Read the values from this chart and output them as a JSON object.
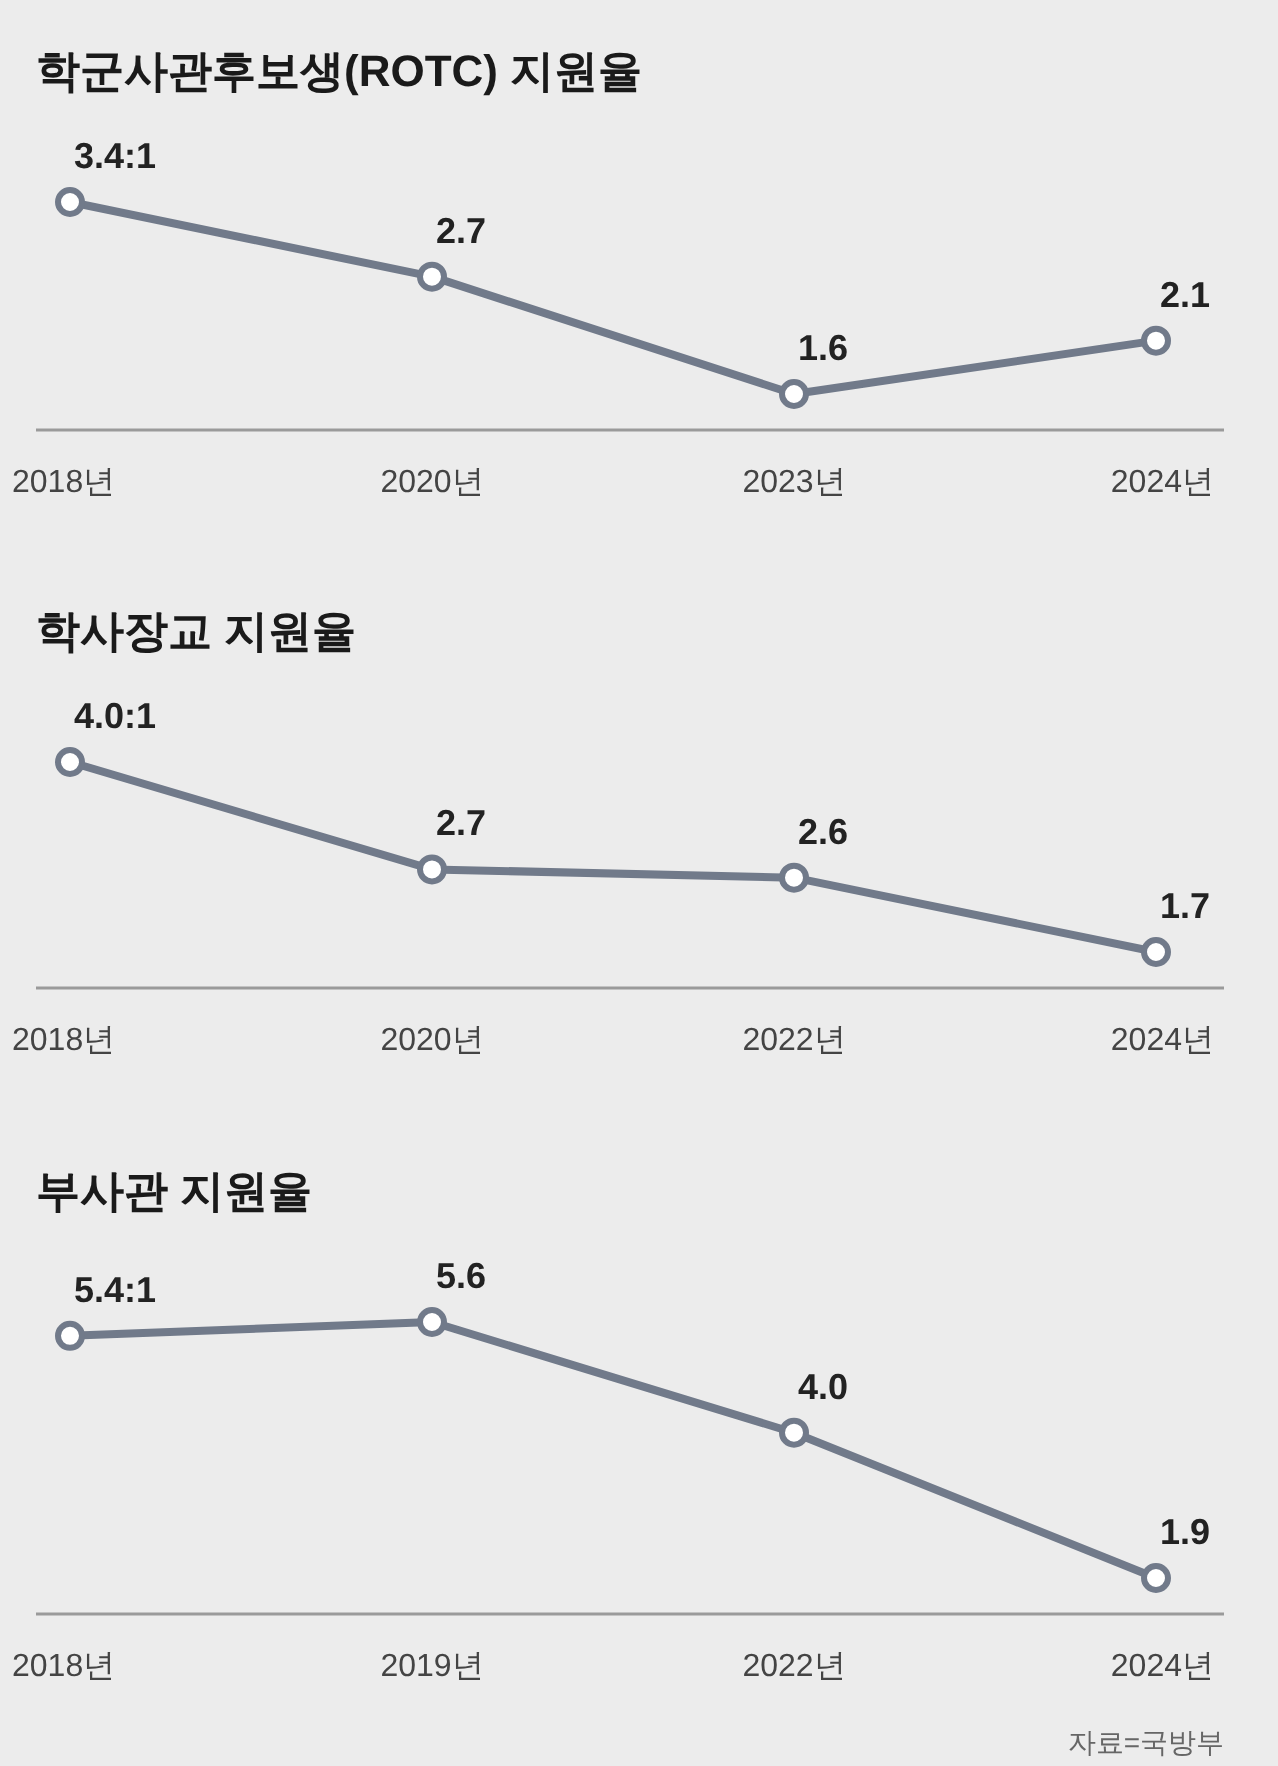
{
  "chart_data": [
    {
      "type": "line",
      "title": "학군사관후보생(ROTC) 지원율",
      "categories": [
        "2018년",
        "2020년",
        "2023년",
        "2024년"
      ],
      "marker": "circle",
      "series": [
        {
          "color": "#717a8a",
          "values": [
            3.4,
            2.7,
            1.6,
            2.1
          ],
          "value_labels": [
            "3.4:1",
            "2.7",
            "1.6",
            "2.1"
          ]
        }
      ]
    },
    {
      "type": "line",
      "title": "학사장교 지원율",
      "categories": [
        "2018년",
        "2020년",
        "2022년",
        "2024년"
      ],
      "marker": "circle",
      "series": [
        {
          "color": "#717a8a",
          "values": [
            4.0,
            2.7,
            2.6,
            1.7
          ],
          "value_labels": [
            "4.0:1",
            "2.7",
            "2.6",
            "1.7"
          ]
        }
      ]
    },
    {
      "type": "line",
      "title": "부사관 지원율",
      "categories": [
        "2018년",
        "2019년",
        "2022년",
        "2024년"
      ],
      "marker": "circle",
      "series": [
        {
          "color": "#717a8a",
          "values": [
            5.4,
            5.6,
            4.0,
            1.9
          ],
          "value_labels": [
            "5.4:1",
            "5.6",
            "4.0",
            "1.9"
          ]
        }
      ],
      "annotations": [
        "자료=국방부"
      ]
    }
  ]
}
